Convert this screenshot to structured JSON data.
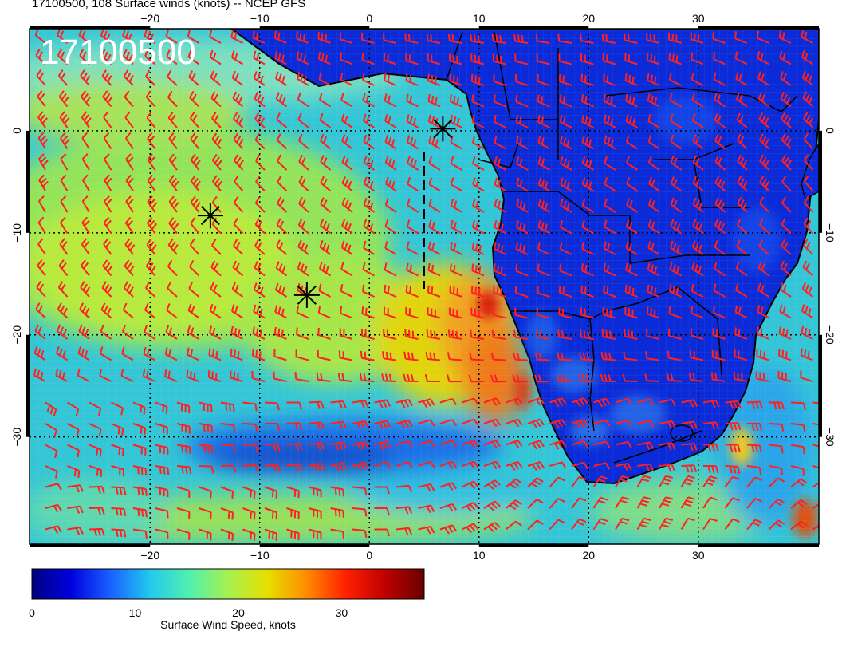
{
  "title": "17100500, 108 Surface winds (knots) -- NCEP GFS",
  "stamp": "17100500",
  "colorbar": {
    "label": "Surface Wind Speed, knots",
    "ticks": [
      "0",
      "10",
      "20",
      "30"
    ],
    "tick_values": [
      0,
      10,
      20,
      30
    ],
    "range": [
      0,
      38
    ],
    "colormap": [
      "#00007f",
      "#0000e0",
      "#1a60ff",
      "#22c8f0",
      "#50f0b0",
      "#a6f050",
      "#e6e000",
      "#ff8c00",
      "#ff2000",
      "#c00000",
      "#6a0000"
    ]
  },
  "axes": {
    "lon_ticks": [
      "−20",
      "−10",
      "0",
      "10",
      "20",
      "30"
    ],
    "lon_values": [
      -20,
      -10,
      0,
      10,
      20,
      30
    ],
    "lat_ticks": [
      "0",
      "−10",
      "−20",
      "−30"
    ],
    "lat_values": [
      0,
      -10,
      -20,
      -30
    ],
    "lon_range": [
      -31,
      41
    ],
    "lat_range": [
      -40.5,
      10
    ]
  },
  "markers": [
    {
      "name": "star",
      "lon": -14.5,
      "lat": -8.3
    },
    {
      "name": "star",
      "lon": -5.7,
      "lat": -16.1
    },
    {
      "name": "star",
      "lon": 6.7,
      "lat": 0.2
    }
  ],
  "barb_color": "#ff2020",
  "land_color": "#0b2bd8",
  "coast_color": "#000000"
}
